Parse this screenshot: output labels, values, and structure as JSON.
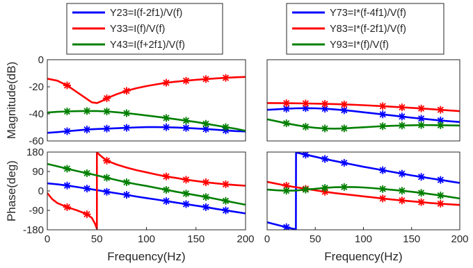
{
  "colors": {
    "blue": "#0000ff",
    "red": "#ff0000",
    "green": "#007f00",
    "axis": "#262626"
  },
  "panels": [
    {
      "id": "mag-left",
      "ylabel": "Magnitude(dB)",
      "xlabel": "",
      "xlim": [
        0,
        200
      ],
      "ylim": [
        -60,
        0
      ],
      "xticks": [],
      "xtick_labels": [],
      "yticks": [
        0,
        -20,
        -40,
        -60
      ],
      "ytick_labels": [
        "0",
        "-20",
        "-40",
        "-60"
      ],
      "series": [
        {
          "color": "blue",
          "x": [
            0,
            10,
            20,
            30,
            40,
            50,
            60,
            70,
            80,
            90,
            100,
            110,
            120,
            130,
            140,
            150,
            160,
            170,
            180,
            190,
            200
          ],
          "y": [
            -54,
            -53.5,
            -52.8,
            -52.2,
            -51.6,
            -51.2,
            -50.9,
            -50.6,
            -50.3,
            -50,
            -49.8,
            -49.8,
            -49.9,
            -50.1,
            -50.4,
            -50.8,
            -51.2,
            -51.7,
            -52.2,
            -52.7,
            -53
          ],
          "markers": [
            20,
            40,
            60,
            80,
            120,
            140,
            160,
            180
          ]
        },
        {
          "color": "red",
          "x": [
            0,
            10,
            20,
            30,
            40,
            45,
            50,
            55,
            60,
            70,
            80,
            90,
            100,
            110,
            120,
            130,
            140,
            150,
            160,
            170,
            180,
            190,
            200
          ],
          "y": [
            -14,
            -15.5,
            -19,
            -24,
            -29,
            -31.5,
            -32,
            -30.5,
            -28.5,
            -25.5,
            -23,
            -21,
            -19.5,
            -18.2,
            -17,
            -16.2,
            -15.5,
            -14.8,
            -14.3,
            -13.8,
            -13.4,
            -13,
            -12.7
          ],
          "markers": [
            20,
            60,
            80,
            120,
            140,
            160,
            180
          ]
        },
        {
          "color": "green",
          "x": [
            0,
            10,
            20,
            30,
            40,
            50,
            60,
            70,
            80,
            90,
            100,
            110,
            120,
            130,
            140,
            150,
            160,
            170,
            180,
            190,
            200
          ],
          "y": [
            -39,
            -38.5,
            -38.2,
            -38,
            -37.9,
            -37.9,
            -38.2,
            -38.8,
            -39.5,
            -40.3,
            -41.2,
            -42.1,
            -43,
            -44,
            -45,
            -46,
            -47.3,
            -48.5,
            -49.8,
            -51,
            -52.5
          ],
          "markers": [
            20,
            40,
            60,
            80,
            120,
            140,
            160,
            180
          ]
        }
      ]
    },
    {
      "id": "mag-right",
      "ylabel": "",
      "xlabel": "",
      "xlim": [
        0,
        200
      ],
      "ylim": [
        -60,
        0
      ],
      "xticks": [],
      "xtick_labels": [],
      "yticks": [],
      "ytick_labels": [],
      "series": [
        {
          "color": "blue",
          "x": [
            0,
            10,
            20,
            30,
            40,
            50,
            60,
            70,
            80,
            90,
            100,
            110,
            120,
            130,
            140,
            150,
            160,
            170,
            180,
            190,
            200
          ],
          "y": [
            -37,
            -36.6,
            -36.2,
            -35.9,
            -35.8,
            -35.9,
            -36.2,
            -36.7,
            -37.3,
            -38,
            -38.8,
            -39.6,
            -40.4,
            -41.2,
            -42,
            -42.8,
            -43.5,
            -44.2,
            -44.9,
            -45.5,
            -46
          ],
          "markers": [
            20,
            40,
            60,
            80,
            120,
            140,
            160,
            180
          ]
        },
        {
          "color": "red",
          "x": [
            0,
            20,
            40,
            60,
            80,
            100,
            120,
            140,
            160,
            180,
            200
          ],
          "y": [
            -32,
            -32.1,
            -32.3,
            -32.6,
            -33,
            -33.6,
            -34.3,
            -35.2,
            -36,
            -37,
            -38
          ],
          "markers": [
            20,
            40,
            60,
            80,
            120,
            140,
            160,
            180
          ]
        },
        {
          "color": "green",
          "x": [
            0,
            10,
            20,
            30,
            40,
            50,
            60,
            70,
            80,
            90,
            100,
            110,
            120,
            130,
            140,
            150,
            160,
            170,
            180,
            190,
            200
          ],
          "y": [
            -44,
            -45.5,
            -47,
            -48.3,
            -49.5,
            -50.3,
            -50.8,
            -50.9,
            -50.7,
            -50.3,
            -49.9,
            -49.5,
            -49.1,
            -48.8,
            -48.6,
            -48.4,
            -48.3,
            -48.3,
            -48.4,
            -48.5,
            -48.6
          ],
          "markers": [
            20,
            40,
            60,
            80,
            120,
            140,
            160,
            180
          ]
        }
      ]
    },
    {
      "id": "phase-left",
      "ylabel": "Phase(deg)",
      "xlabel": "Frequency(Hz)",
      "xlim": [
        0,
        200
      ],
      "ylim": [
        -180,
        180
      ],
      "xticks": [
        0,
        50,
        100,
        150,
        200
      ],
      "xtick_labels": [
        "0",
        "50",
        "100",
        "150",
        "200"
      ],
      "yticks": [
        180,
        90,
        0,
        -90,
        -180
      ],
      "ytick_labels": [
        "180",
        "90",
        "0",
        "-90",
        "-180"
      ],
      "series": [
        {
          "color": "blue",
          "x": [
            0,
            10,
            20,
            30,
            40,
            50,
            60,
            70,
            80,
            90,
            100,
            110,
            120,
            130,
            140,
            150,
            160,
            170,
            180,
            190,
            200
          ],
          "y": [
            35,
            31,
            25,
            18,
            11,
            4,
            -4,
            -11,
            -18,
            -26,
            -33,
            -40,
            -47,
            -54,
            -61,
            -68,
            -75,
            -83,
            -90,
            -97,
            -104
          ],
          "markers": [
            20,
            40,
            60,
            80,
            120,
            140,
            160,
            180
          ]
        },
        {
          "color": "red",
          "x": [
            0,
            5,
            10,
            20,
            30,
            40,
            45,
            48,
            50,
            50.01,
            55,
            60,
            70,
            80,
            90,
            100,
            110,
            120,
            130,
            140,
            150,
            160,
            170,
            180,
            190,
            200
          ],
          "y": [
            -10,
            -38,
            -56,
            -75,
            -90,
            -108,
            -125,
            -150,
            -175,
            178,
            158,
            140,
            122,
            108,
            96,
            86,
            76,
            67,
            60,
            52,
            46,
            40,
            35,
            31,
            27,
            24
          ],
          "markers": [
            20,
            40,
            60,
            120,
            140,
            160,
            180
          ]
        },
        {
          "color": "green",
          "x": [
            0,
            10,
            20,
            30,
            40,
            50,
            60,
            70,
            80,
            90,
            100,
            110,
            120,
            130,
            140,
            150,
            160,
            170,
            180,
            190,
            200
          ],
          "y": [
            125,
            114,
            103,
            92,
            82,
            72,
            61,
            50,
            40,
            31,
            23,
            14,
            5,
            -4,
            -12,
            -20,
            -28,
            -37,
            -46,
            -55,
            -64
          ],
          "markers": [
            20,
            40,
            60,
            80,
            120,
            140,
            160,
            180
          ]
        }
      ]
    },
    {
      "id": "phase-right",
      "ylabel": "",
      "xlabel": "Frequency(Hz)",
      "xlim": [
        0,
        200
      ],
      "ylim": [
        -180,
        180
      ],
      "xticks": [
        0,
        50,
        100,
        150,
        200
      ],
      "xtick_labels": [
        "0",
        "50",
        "100",
        "150",
        "200"
      ],
      "yticks": [],
      "ytick_labels": [],
      "series": [
        {
          "color": "blue",
          "x": [
            0,
            10,
            20,
            29.9,
            30,
            40,
            50,
            60,
            70,
            80,
            90,
            100,
            110,
            120,
            130,
            140,
            150,
            160,
            170,
            180,
            190,
            200
          ],
          "y": [
            -145,
            -157,
            -168,
            -178,
            178,
            168,
            158,
            148,
            139,
            130,
            121,
            112,
            104,
            96,
            88,
            80,
            72,
            65,
            58,
            51,
            44,
            37
          ],
          "markers": [
            20,
            40,
            60,
            80,
            120,
            140,
            160,
            180
          ]
        },
        {
          "color": "red",
          "x": [
            0,
            10,
            20,
            30,
            40,
            50,
            60,
            70,
            80,
            90,
            100,
            110,
            120,
            130,
            140,
            150,
            160,
            170,
            180,
            190,
            200
          ],
          "y": [
            42,
            33,
            24,
            17,
            10,
            3,
            -4,
            -10,
            -15,
            -20,
            -25,
            -30,
            -35,
            -40,
            -44,
            -48,
            -52,
            -56,
            -59,
            -62,
            -65
          ],
          "markers": [
            20,
            40,
            60,
            120,
            140,
            160,
            180
          ]
        },
        {
          "color": "green",
          "x": [
            0,
            10,
            20,
            30,
            40,
            50,
            60,
            70,
            80,
            90,
            100,
            110,
            120,
            130,
            140,
            150,
            160,
            170,
            180,
            190,
            200
          ],
          "y": [
            6,
            3,
            1,
            2,
            6,
            10,
            14,
            17,
            18,
            18,
            16,
            13,
            9,
            5,
            1,
            -4,
            -9,
            -15,
            -21,
            -28,
            -35
          ],
          "markers": [
            20,
            40,
            60,
            80,
            120,
            140,
            160,
            180
          ]
        }
      ]
    }
  ],
  "legends": [
    {
      "id": "legend-left",
      "entries": [
        {
          "color": "blue",
          "text": "Y23=I(f-2f1)/V(f)"
        },
        {
          "color": "red",
          "text": "Y33=I(f)/V(f)"
        },
        {
          "color": "green",
          "text": "Y43=I(f+2f1)/V(f)"
        }
      ]
    },
    {
      "id": "legend-right",
      "entries": [
        {
          "color": "blue",
          "text": "Y73=I*(f-4f1)/V(f)"
        },
        {
          "color": "red",
          "text": "Y83=I*(f-2f1)/V(f)"
        },
        {
          "color": "green",
          "text": "Y93=I*(f)/V(f)"
        }
      ]
    }
  ]
}
